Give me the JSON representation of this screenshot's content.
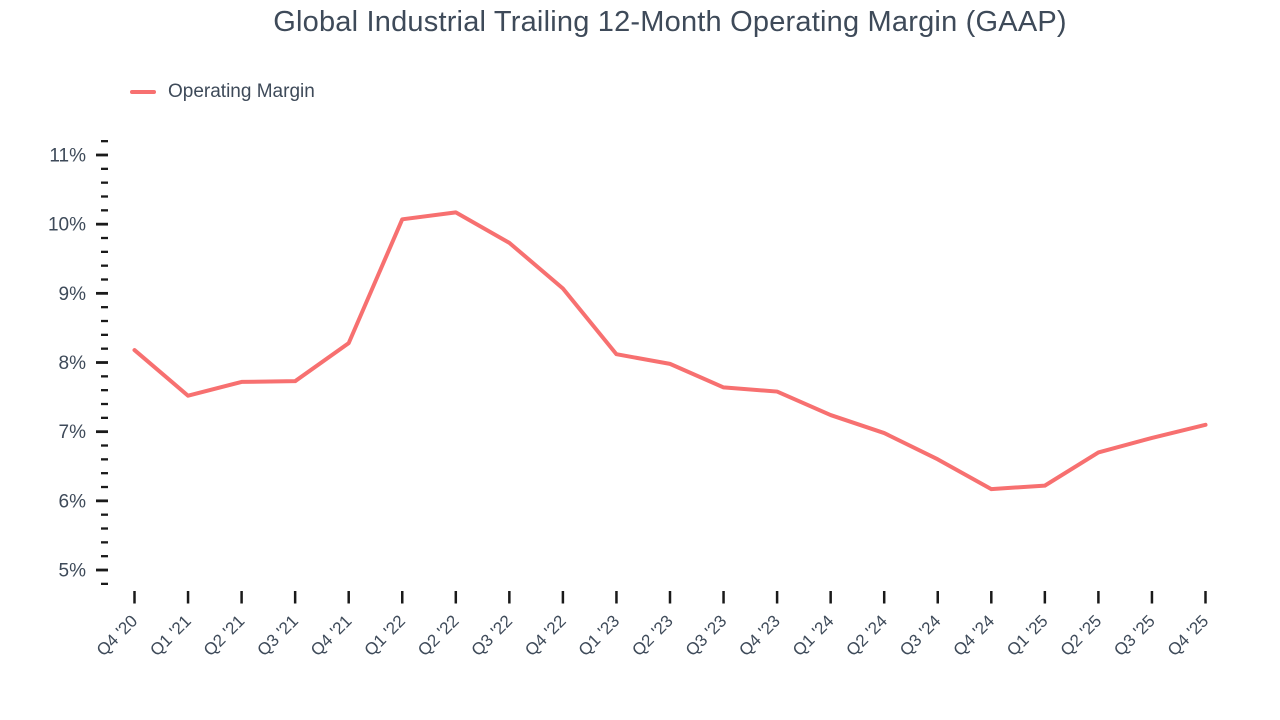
{
  "title": "Global Industrial Trailing 12-Month Operating Margin (GAAP)",
  "legend": [
    {
      "label": "Operating Margin",
      "color": "#f77070"
    }
  ],
  "colors": {
    "line": "#f77070",
    "text": "#3e4a59",
    "tick": "#1a1a1a",
    "background": "#ffffff"
  },
  "chart_data": {
    "type": "line",
    "title": "Global Industrial Trailing 12-Month Operating Margin (GAAP)",
    "categories": [
      "Q4 '20",
      "Q1 '21",
      "Q2 '21",
      "Q3 '21",
      "Q4 '21",
      "Q1 '22",
      "Q2 '22",
      "Q3 '22",
      "Q4 '22",
      "Q1 '23",
      "Q2 '23",
      "Q3 '23",
      "Q4 '23",
      "Q1 '24",
      "Q2 '24",
      "Q3 '24",
      "Q4 '24",
      "Q1 '25",
      "Q2 '25",
      "Q3 '25",
      "Q4 '25"
    ],
    "series": [
      {
        "name": "Operating Margin",
        "color": "#f77070",
        "values": [
          8.18,
          7.52,
          7.72,
          7.73,
          8.28,
          10.07,
          10.17,
          9.73,
          9.07,
          8.12,
          7.98,
          7.64,
          7.58,
          7.24,
          6.98,
          6.6,
          6.17,
          6.22,
          6.7,
          6.91,
          7.1
        ]
      }
    ],
    "xlabel": "",
    "ylabel": "",
    "y_ticks": [
      11,
      10,
      9,
      8,
      7,
      6,
      5
    ],
    "y_tick_labels": [
      "11%",
      "10%",
      "9%",
      "8%",
      "7%",
      "6%",
      "5%"
    ],
    "y_minor_tick_step": 0.2,
    "ylim": [
      4.8,
      11.2
    ],
    "grid": false,
    "legend_position": "top-left"
  }
}
